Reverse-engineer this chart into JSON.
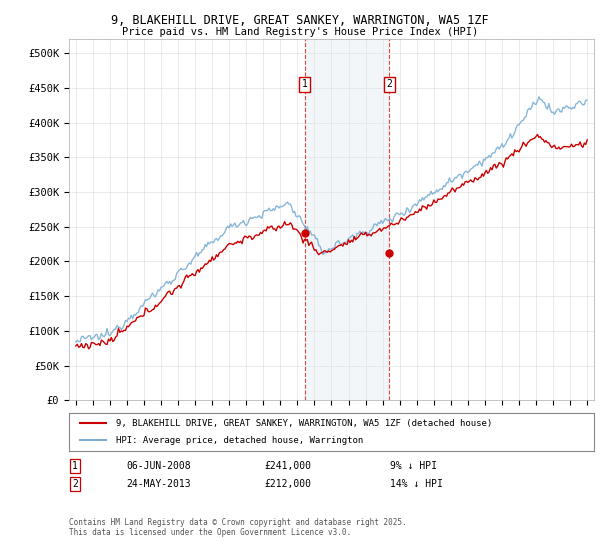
{
  "title_line1": "9, BLAKEHILL DRIVE, GREAT SANKEY, WARRINGTON, WA5 1ZF",
  "title_line2": "Price paid vs. HM Land Registry's House Price Index (HPI)",
  "ylabel_ticks": [
    "£0",
    "£50K",
    "£100K",
    "£150K",
    "£200K",
    "£250K",
    "£300K",
    "£350K",
    "£400K",
    "£450K",
    "£500K"
  ],
  "ytick_values": [
    0,
    50000,
    100000,
    150000,
    200000,
    250000,
    300000,
    350000,
    400000,
    450000,
    500000
  ],
  "ylim": [
    0,
    520000
  ],
  "x_start_year": 1995,
  "x_end_year": 2025,
  "hpi_color": "#7bafd4",
  "price_color": "#cc0000",
  "marker1_x": 2008.43,
  "marker2_x": 2013.39,
  "marker1_label": "1",
  "marker2_label": "2",
  "shade_color": "#dce8f0",
  "vline_color": "#dd3333",
  "legend_line1": "9, BLAKEHILL DRIVE, GREAT SANKEY, WARRINGTON, WA5 1ZF (detached house)",
  "legend_line2": "HPI: Average price, detached house, Warrington",
  "annotation1_num": "1",
  "annotation1_date": "06-JUN-2008",
  "annotation1_price": "£241,000",
  "annotation1_pct": "9% ↓ HPI",
  "annotation2_num": "2",
  "annotation2_date": "24-MAY-2013",
  "annotation2_price": "£212,000",
  "annotation2_pct": "14% ↓ HPI",
  "footnote": "Contains HM Land Registry data © Crown copyright and database right 2025.\nThis data is licensed under the Open Government Licence v3.0.",
  "background_color": "#ffffff",
  "grid_color": "#cccccc",
  "sale1_year": 2008.43,
  "sale1_price": 241000,
  "sale2_year": 2013.39,
  "sale2_price": 212000
}
